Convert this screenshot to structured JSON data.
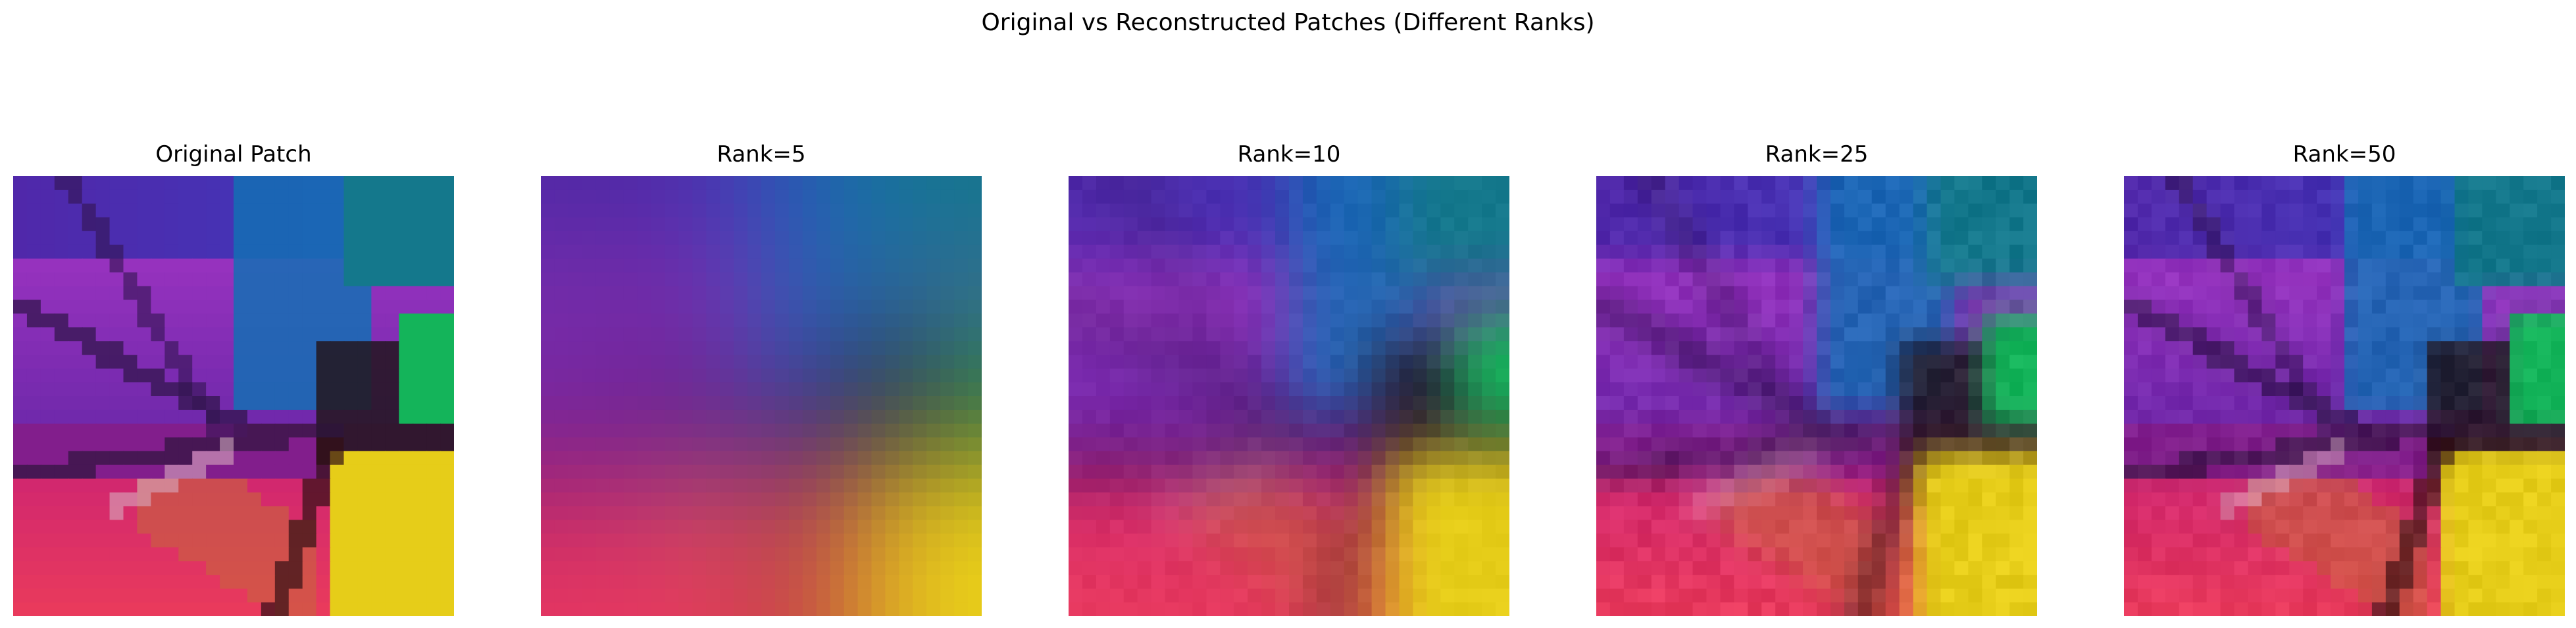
{
  "figure": {
    "title": "Original vs Reconstructed Patches (Different Ranks)"
  },
  "panels": [
    {
      "title": "Original Patch",
      "blur": 0
    },
    {
      "title": "Rank=5",
      "blur": 4.2,
      "noise": 0.0
    },
    {
      "title": "Rank=10",
      "blur": 2.0,
      "noise": 0.04
    },
    {
      "title": "Rank=25",
      "blur": 0.9,
      "noise": 0.08
    },
    {
      "title": "Rank=50",
      "blur": 0.45,
      "noise": 0.07
    }
  ]
}
